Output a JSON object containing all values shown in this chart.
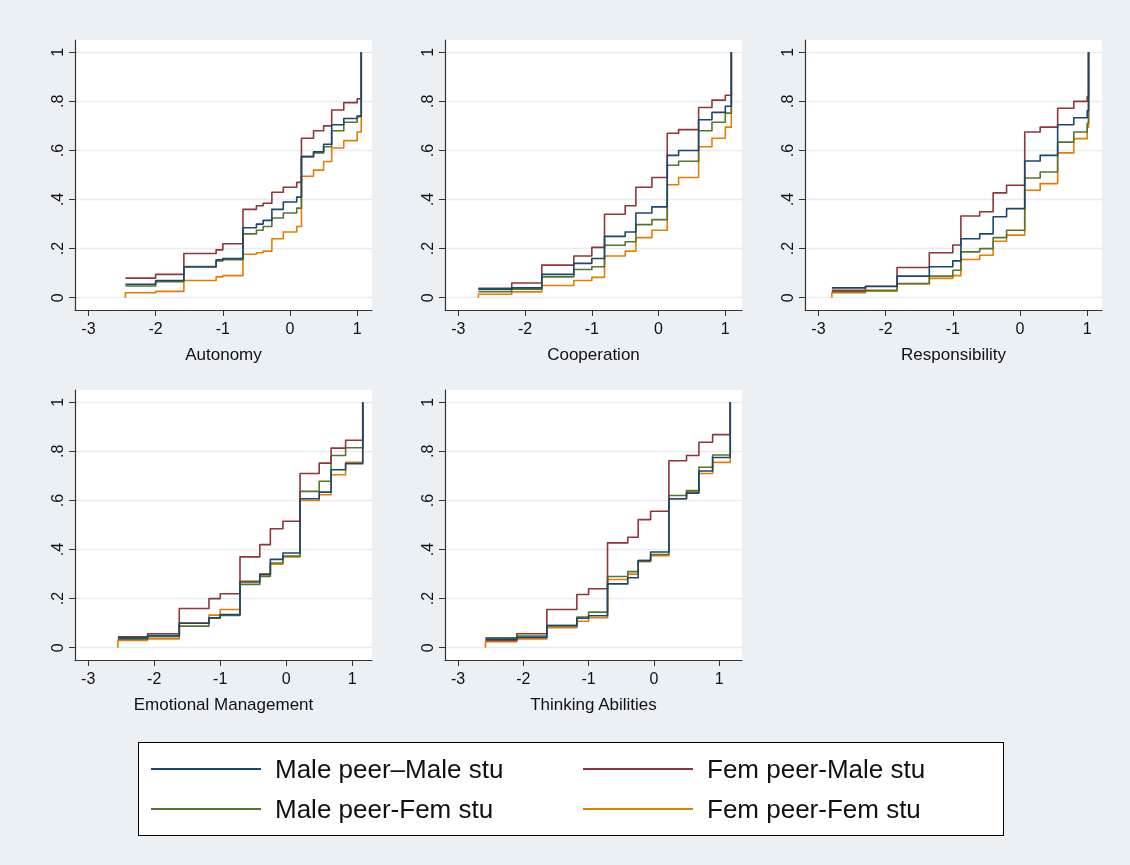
{
  "chart_data": [
    {
      "type": "step",
      "xlabel": "Autonomy",
      "legend": "bottom",
      "grid": "y",
      "xlim": [
        -3.2,
        1.22
      ],
      "ylim": [
        -0.05,
        1.05
      ],
      "xticks": [
        -3,
        -2,
        -1,
        0,
        1
      ],
      "yticks": [
        {
          "value": 0,
          "label": "0"
        },
        {
          "value": 0.2,
          "label": ".2"
        },
        {
          "value": 0.4,
          "label": ".4"
        },
        {
          "value": 0.6,
          "label": ".6"
        },
        {
          "value": 0.8,
          "label": ".8"
        },
        {
          "value": 1,
          "label": "1"
        }
      ],
      "x": [
        -2.45,
        -2.45,
        -2.0,
        -1.58,
        -1.1,
        -1.0,
        -0.7,
        -0.5,
        -0.4,
        -0.27,
        -0.1,
        0.1,
        0.17,
        0.35,
        0.5,
        0.62,
        0.8,
        1.0,
        1.06
      ],
      "series": [
        {
          "name": "Male peer–Male stu",
          "color": "#1a476f",
          "values": [
            null,
            0.055,
            0.07,
            0.125,
            0.155,
            0.16,
            0.285,
            0.3,
            0.315,
            0.36,
            0.39,
            0.41,
            0.575,
            0.595,
            0.625,
            0.705,
            0.73,
            0.74,
            1
          ]
        },
        {
          "name": "Fem peer-Male stu",
          "color": "#90353b",
          "values": [
            null,
            0.08,
            0.095,
            0.18,
            0.195,
            0.22,
            0.36,
            0.375,
            0.385,
            0.43,
            0.45,
            0.47,
            0.65,
            0.68,
            0.7,
            0.765,
            0.795,
            0.81,
            1
          ]
        },
        {
          "name": "Male peer-Fem stu",
          "color": "#55752f",
          "values": [
            null,
            0.048,
            0.065,
            0.127,
            0.15,
            0.155,
            0.26,
            0.275,
            0.29,
            0.325,
            0.345,
            0.365,
            0.575,
            0.59,
            0.615,
            0.68,
            0.715,
            0.738,
            1
          ]
        },
        {
          "name": "Fem peer-Fem stu",
          "color": "#e37e00",
          "values": [
            0,
            0.02,
            0.026,
            0.07,
            0.085,
            0.09,
            0.177,
            0.183,
            0.19,
            0.24,
            0.268,
            0.29,
            0.495,
            0.52,
            0.555,
            0.61,
            0.64,
            0.675,
            1
          ]
        }
      ]
    },
    {
      "type": "step",
      "xlabel": "Cooperation",
      "grid": "y",
      "xlim": [
        -3.2,
        1.25
      ],
      "ylim": [
        -0.05,
        1.05
      ],
      "xticks": [
        -3,
        -2,
        -1,
        0,
        1
      ],
      "yticks": [
        {
          "value": 0,
          "label": "0"
        },
        {
          "value": 0.2,
          "label": ".2"
        },
        {
          "value": 0.4,
          "label": ".4"
        },
        {
          "value": 0.6,
          "label": ".6"
        },
        {
          "value": 0.8,
          "label": ".8"
        },
        {
          "value": 1,
          "label": "1"
        }
      ],
      "x": [
        -2.7,
        -2.7,
        -2.2,
        -1.75,
        -1.27,
        -1.0,
        -0.81,
        -0.5,
        -0.34,
        -0.1,
        0.13,
        0.3,
        0.6,
        0.8,
        1.0,
        1.09
      ],
      "series": [
        {
          "color": "#1a476f",
          "values": [
            null,
            0.035,
            0.04,
            0.095,
            0.14,
            0.16,
            0.25,
            0.268,
            0.345,
            0.37,
            0.58,
            0.6,
            0.725,
            0.755,
            0.78,
            1
          ]
        },
        {
          "color": "#90353b",
          "values": [
            null,
            0.038,
            0.06,
            0.133,
            0.17,
            0.205,
            0.34,
            0.375,
            0.45,
            0.49,
            0.67,
            0.685,
            0.775,
            0.805,
            0.825,
            1
          ]
        },
        {
          "color": "#55752f",
          "values": [
            null,
            0.025,
            0.035,
            0.085,
            0.115,
            0.126,
            0.214,
            0.228,
            0.298,
            0.318,
            0.54,
            0.556,
            0.68,
            0.715,
            0.752,
            1
          ]
        },
        {
          "color": "#e37e00",
          "values": [
            0,
            0.014,
            0.024,
            0.05,
            0.07,
            0.083,
            0.17,
            0.19,
            0.245,
            0.275,
            0.46,
            0.49,
            0.615,
            0.65,
            0.695,
            1
          ]
        }
      ]
    },
    {
      "type": "step",
      "xlabel": "Responsibility",
      "grid": "y",
      "xlim": [
        -3.2,
        1.22
      ],
      "ylim": [
        -0.05,
        1.05
      ],
      "xticks": [
        -3,
        -2,
        -1,
        0,
        1
      ],
      "yticks": [
        {
          "value": 0,
          "label": "0"
        },
        {
          "value": 0.2,
          "label": ".2"
        },
        {
          "value": 0.4,
          "label": ".4"
        },
        {
          "value": 0.6,
          "label": ".6"
        },
        {
          "value": 0.8,
          "label": ".8"
        },
        {
          "value": 1,
          "label": "1"
        }
      ],
      "x": [
        -2.8,
        -2.8,
        -2.3,
        -1.83,
        -1.35,
        -1.0,
        -0.88,
        -0.6,
        -0.4,
        -0.2,
        0.07,
        0.3,
        0.56,
        0.8,
        1.0,
        1.02
      ],
      "series": [
        {
          "color": "#1a476f",
          "values": [
            null,
            0.04,
            0.046,
            0.088,
            0.126,
            0.15,
            0.24,
            0.26,
            0.33,
            0.363,
            0.557,
            0.58,
            0.705,
            0.733,
            0.763,
            1
          ]
        },
        {
          "color": "#90353b",
          "values": [
            null,
            0.03,
            0.047,
            0.123,
            0.183,
            0.215,
            0.333,
            0.35,
            0.427,
            0.458,
            0.675,
            0.695,
            0.772,
            0.8,
            0.82,
            1
          ]
        },
        {
          "color": "#55752f",
          "values": [
            null,
            0.025,
            0.03,
            0.058,
            0.088,
            0.112,
            0.187,
            0.2,
            0.245,
            0.275,
            0.488,
            0.512,
            0.634,
            0.675,
            0.711,
            1
          ]
        },
        {
          "color": "#e37e00",
          "values": [
            0,
            0.02,
            0.027,
            0.056,
            0.079,
            0.09,
            0.156,
            0.173,
            0.23,
            0.255,
            0.438,
            0.465,
            0.59,
            0.648,
            0.695,
            1
          ]
        }
      ]
    },
    {
      "type": "step",
      "xlabel": "Emotional Management",
      "grid": "y",
      "xlim": [
        -3.2,
        1.3
      ],
      "ylim": [
        -0.05,
        1.05
      ],
      "xticks": [
        -3,
        -2,
        -1,
        0,
        1
      ],
      "yticks": [
        {
          "value": 0,
          "label": "0"
        },
        {
          "value": 0.2,
          "label": ".2"
        },
        {
          "value": 0.4,
          "label": ".4"
        },
        {
          "value": 0.6,
          "label": ".6"
        },
        {
          "value": 0.8,
          "label": ".8"
        },
        {
          "value": 1,
          "label": "1"
        }
      ],
      "x": [
        -2.55,
        -2.55,
        -2.1,
        -1.62,
        -1.17,
        -1.0,
        -0.7,
        -0.4,
        -0.24,
        -0.05,
        0.21,
        0.5,
        0.68,
        0.9,
        1.16
      ],
      "series": [
        {
          "color": "#1a476f",
          "values": [
            null,
            0.04,
            0.05,
            0.1,
            0.122,
            0.135,
            0.268,
            0.3,
            0.36,
            0.386,
            0.607,
            0.634,
            0.725,
            0.75,
            1
          ]
        },
        {
          "color": "#90353b",
          "values": [
            null,
            0.045,
            0.057,
            0.16,
            0.2,
            0.22,
            0.37,
            0.42,
            0.485,
            0.515,
            0.71,
            0.752,
            0.813,
            0.845,
            1
          ]
        },
        {
          "color": "#55752f",
          "values": [
            null,
            0.035,
            0.045,
            0.088,
            0.12,
            0.132,
            0.258,
            0.29,
            0.345,
            0.373,
            0.637,
            0.678,
            0.783,
            0.815,
            1
          ]
        },
        {
          "color": "#e37e00",
          "values": [
            0,
            0.03,
            0.036,
            0.102,
            0.133,
            0.156,
            0.272,
            0.295,
            0.34,
            0.37,
            0.6,
            0.623,
            0.705,
            0.755,
            1
          ]
        }
      ]
    },
    {
      "type": "step",
      "xlabel": "Thinking Abilities",
      "grid": "y",
      "xlim": [
        -3.2,
        1.35
      ],
      "ylim": [
        -0.05,
        1.05
      ],
      "xticks": [
        -3,
        -2,
        -1,
        0,
        1
      ],
      "yticks": [
        {
          "value": 0,
          "label": "0"
        },
        {
          "value": 0.2,
          "label": ".2"
        },
        {
          "value": 0.4,
          "label": ".4"
        },
        {
          "value": 0.6,
          "label": ".6"
        },
        {
          "value": 0.8,
          "label": ".8"
        },
        {
          "value": 1,
          "label": "1"
        }
      ],
      "x": [
        -2.58,
        -2.58,
        -2.1,
        -1.64,
        -1.18,
        -1.0,
        -0.71,
        -0.4,
        -0.24,
        -0.05,
        0.23,
        0.5,
        0.69,
        0.9,
        1.17
      ],
      "series": [
        {
          "color": "#1a476f",
          "values": [
            null,
            0.035,
            0.042,
            0.09,
            0.12,
            0.13,
            0.26,
            0.285,
            0.355,
            0.39,
            0.607,
            0.63,
            0.72,
            0.775,
            1
          ]
        },
        {
          "color": "#90353b",
          "values": [
            null,
            0.03,
            0.057,
            0.156,
            0.217,
            0.24,
            0.427,
            0.45,
            0.522,
            0.556,
            0.762,
            0.783,
            0.837,
            0.868,
            1
          ]
        },
        {
          "color": "#55752f",
          "values": [
            null,
            0.04,
            0.048,
            0.09,
            0.125,
            0.145,
            0.29,
            0.31,
            0.355,
            0.38,
            0.62,
            0.64,
            0.735,
            0.785,
            1
          ]
        },
        {
          "color": "#e37e00",
          "values": [
            0,
            0.025,
            0.036,
            0.082,
            0.108,
            0.122,
            0.278,
            0.3,
            0.35,
            0.375,
            0.607,
            0.635,
            0.71,
            0.755,
            1
          ]
        }
      ]
    }
  ]
}
